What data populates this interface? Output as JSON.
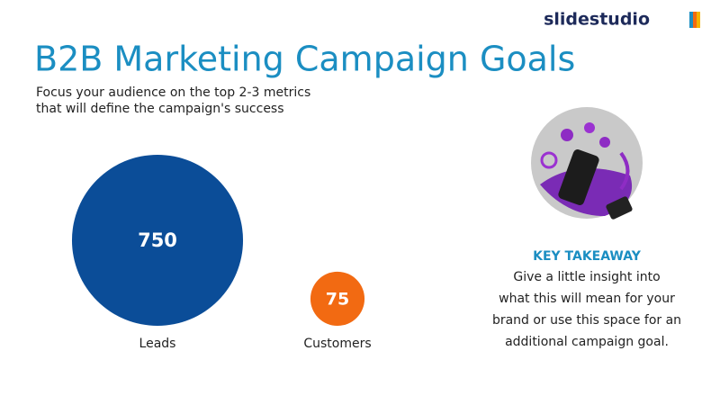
{
  "logo": "slidestudio",
  "title": "B2B Marketing Campaign Goals",
  "subtitle": [
    "Focus your audience on the top 2-3 metrics",
    "that will define the campaign's success"
  ],
  "chart_data": {
    "type": "bubble",
    "categories": [
      "Leads",
      "Customers"
    ],
    "values": [
      750,
      75
    ],
    "colors": [
      "#0b4d98",
      "#f26a12"
    ]
  },
  "takeaway": {
    "heading": "KEY TAKEAWAY",
    "body": [
      "Give a little insight into",
      "what this will mean for your",
      "brand or use this space for an",
      "additional campaign goal."
    ]
  }
}
